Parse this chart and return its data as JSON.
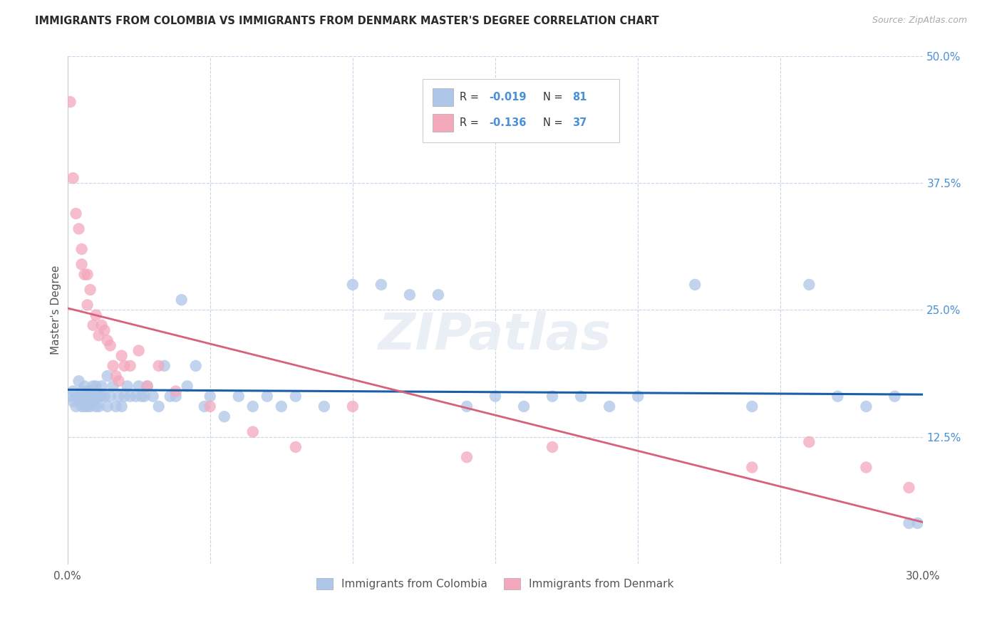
{
  "title": "IMMIGRANTS FROM COLOMBIA VS IMMIGRANTS FROM DENMARK MASTER'S DEGREE CORRELATION CHART",
  "source": "Source: ZipAtlas.com",
  "ylabel": "Master's Degree",
  "xlim": [
    0.0,
    0.3
  ],
  "ylim": [
    0.0,
    0.5
  ],
  "xticks": [
    0.0,
    0.05,
    0.1,
    0.15,
    0.2,
    0.25,
    0.3
  ],
  "xtick_labels": [
    "0.0%",
    "",
    "",
    "",
    "",
    "",
    "30.0%"
  ],
  "ytick_labels_right": [
    "50.0%",
    "37.5%",
    "25.0%",
    "12.5%",
    ""
  ],
  "yticks_right": [
    0.5,
    0.375,
    0.25,
    0.125,
    0.0
  ],
  "colombia_R": -0.019,
  "colombia_N": 81,
  "denmark_R": -0.136,
  "denmark_N": 37,
  "colombia_color": "#aec6e8",
  "denmark_color": "#f4a8bc",
  "colombia_line_color": "#1a5fa8",
  "denmark_line_color": "#d9607a",
  "legend_text_color": "#4a90d9",
  "background_color": "#ffffff",
  "grid_color": "#c8d4e8",
  "colombia_x": [
    0.001,
    0.002,
    0.002,
    0.003,
    0.003,
    0.004,
    0.004,
    0.005,
    0.005,
    0.005,
    0.006,
    0.006,
    0.006,
    0.007,
    0.007,
    0.007,
    0.008,
    0.008,
    0.008,
    0.008,
    0.009,
    0.009,
    0.01,
    0.01,
    0.01,
    0.011,
    0.011,
    0.012,
    0.012,
    0.013,
    0.014,
    0.014,
    0.015,
    0.016,
    0.017,
    0.018,
    0.019,
    0.02,
    0.021,
    0.022,
    0.024,
    0.025,
    0.026,
    0.027,
    0.028,
    0.03,
    0.032,
    0.034,
    0.036,
    0.038,
    0.04,
    0.042,
    0.045,
    0.048,
    0.05,
    0.055,
    0.06,
    0.065,
    0.07,
    0.075,
    0.08,
    0.09,
    0.1,
    0.11,
    0.12,
    0.13,
    0.14,
    0.15,
    0.16,
    0.17,
    0.18,
    0.19,
    0.2,
    0.22,
    0.24,
    0.26,
    0.27,
    0.28,
    0.29,
    0.295,
    0.298
  ],
  "colombia_y": [
    0.165,
    0.17,
    0.16,
    0.165,
    0.155,
    0.18,
    0.16,
    0.165,
    0.17,
    0.155,
    0.175,
    0.16,
    0.155,
    0.165,
    0.17,
    0.155,
    0.17,
    0.16,
    0.165,
    0.155,
    0.175,
    0.16,
    0.165,
    0.175,
    0.155,
    0.165,
    0.155,
    0.175,
    0.165,
    0.165,
    0.185,
    0.155,
    0.165,
    0.175,
    0.155,
    0.165,
    0.155,
    0.165,
    0.175,
    0.165,
    0.165,
    0.175,
    0.165,
    0.165,
    0.175,
    0.165,
    0.155,
    0.195,
    0.165,
    0.165,
    0.26,
    0.175,
    0.195,
    0.155,
    0.165,
    0.145,
    0.165,
    0.155,
    0.165,
    0.155,
    0.165,
    0.155,
    0.275,
    0.275,
    0.265,
    0.265,
    0.155,
    0.165,
    0.155,
    0.165,
    0.165,
    0.155,
    0.165,
    0.275,
    0.155,
    0.275,
    0.165,
    0.155,
    0.165,
    0.04,
    0.04
  ],
  "denmark_x": [
    0.001,
    0.002,
    0.003,
    0.004,
    0.005,
    0.005,
    0.006,
    0.007,
    0.007,
    0.008,
    0.009,
    0.01,
    0.011,
    0.012,
    0.013,
    0.014,
    0.015,
    0.016,
    0.017,
    0.018,
    0.019,
    0.02,
    0.022,
    0.025,
    0.028,
    0.032,
    0.038,
    0.05,
    0.065,
    0.08,
    0.1,
    0.14,
    0.17,
    0.24,
    0.26,
    0.28,
    0.295
  ],
  "denmark_y": [
    0.455,
    0.38,
    0.345,
    0.33,
    0.31,
    0.295,
    0.285,
    0.285,
    0.255,
    0.27,
    0.235,
    0.245,
    0.225,
    0.235,
    0.23,
    0.22,
    0.215,
    0.195,
    0.185,
    0.18,
    0.205,
    0.195,
    0.195,
    0.21,
    0.175,
    0.195,
    0.17,
    0.155,
    0.13,
    0.115,
    0.155,
    0.105,
    0.115,
    0.095,
    0.12,
    0.095,
    0.075
  ]
}
